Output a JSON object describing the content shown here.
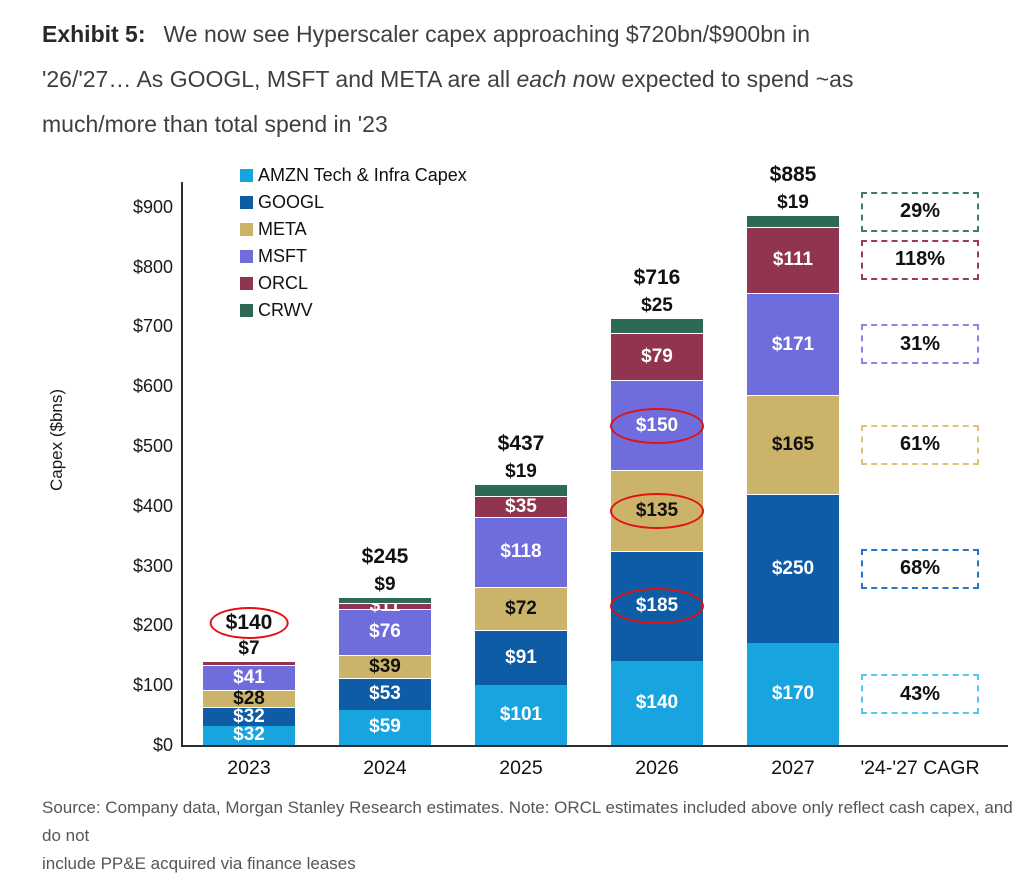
{
  "title": {
    "exhibit_label": "Exhibit 5:",
    "line1": "We now see Hyperscaler capex approaching $720bn/$900bn in",
    "line2_pre": "'26/'27… As GOOGL, MSFT and META are all ",
    "line2_italic": "each n",
    "line2_post": "ow expected to spend ~as",
    "line3": "much/more than total spend in '23"
  },
  "source": {
    "line1": "Source: Company data, Morgan Stanley Research estimates. Note: ORCL estimates included above only reflect cash capex, and do not",
    "line2": "include PP&E acquired via finance leases"
  },
  "chart_data": {
    "type": "bar",
    "stacked": true,
    "title": "",
    "xlabel": "",
    "ylabel": "Capex ($bns)",
    "ylim": [
      0,
      940
    ],
    "grid": false,
    "legend_position": "top-left",
    "ytick_labels": [
      "$0",
      "$100",
      "$200",
      "$300",
      "$400",
      "$500",
      "$600",
      "$700",
      "$800",
      "$900"
    ],
    "categories": [
      "2023",
      "2024",
      "2025",
      "2026",
      "2027"
    ],
    "cagr_column_label": "'24-'27 CAGR",
    "series": [
      {
        "key": "AMZN",
        "name": "AMZN Tech & Infra Capex",
        "color": "#18A4DE",
        "label_color": "#FFFFFF",
        "values": [
          32,
          59,
          101,
          140,
          170
        ],
        "cagr": "43%",
        "cagr_border": "#56C5F2"
      },
      {
        "key": "GOOGL",
        "name": "GOOGL",
        "color": "#0E5CA6",
        "label_color": "#FFFFFF",
        "values": [
          32,
          53,
          91,
          185,
          250
        ],
        "cagr": "68%",
        "cagr_border": "#2477C9"
      },
      {
        "key": "META",
        "name": "META",
        "color": "#CBB369",
        "label_color": "#111111",
        "values": [
          28,
          39,
          72,
          135,
          165
        ],
        "cagr": "61%",
        "cagr_border": "#DCC378"
      },
      {
        "key": "MSFT",
        "name": "MSFT",
        "color": "#6F6DDC",
        "label_color": "#FFFFFF",
        "values": [
          41,
          76,
          118,
          150,
          171
        ],
        "cagr": "31%",
        "cagr_border": "#8787EA"
      },
      {
        "key": "ORCL",
        "name": "ORCL",
        "color": "#91344F",
        "label_color": "#FFFFFF",
        "values": [
          7,
          11,
          35,
          79,
          111
        ],
        "cagr": "118%",
        "cagr_border": "#A23A56"
      },
      {
        "key": "CRWV",
        "name": "CRWV",
        "color": "#2D6A55",
        "label_color": "#FFFFFF",
        "values": [
          0,
          9,
          19,
          25,
          19
        ],
        "cagr": "29%",
        "cagr_border": "#3D7E67",
        "cagr_nudge": -9
      }
    ],
    "totals": [
      "$140",
      "$245",
      "$437",
      "$716",
      "$885"
    ],
    "total_circled": [
      "2023"
    ],
    "outside_value_labels": [
      {
        "category": "2023",
        "series": "ORCL"
      },
      {
        "category": "2024",
        "series": "CRWV"
      },
      {
        "category": "2025",
        "series": "CRWV"
      },
      {
        "category": "2026",
        "series": "CRWV"
      },
      {
        "category": "2027",
        "series": "CRWV"
      }
    ],
    "circled_value_labels": [
      {
        "category": "2026",
        "series": "GOOGL"
      },
      {
        "category": "2026",
        "series": "META"
      },
      {
        "category": "2026",
        "series": "MSFT"
      }
    ],
    "circle_color": "#E31111"
  }
}
